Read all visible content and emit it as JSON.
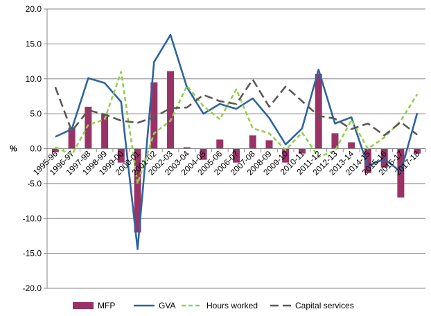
{
  "chart_data": {
    "type": "bar+line",
    "ylabel": "%",
    "ylim": [
      -20,
      20
    ],
    "yticks": [
      "-20.0",
      "-15.0",
      "-10.0",
      "-5.0",
      "0.0",
      "5.0",
      "10.0",
      "15.0",
      "20.0"
    ],
    "grid": true,
    "legend_position": "bottom",
    "categories": [
      "1995-96",
      "1996-97",
      "1997-98",
      "1998-99",
      "1999-00",
      "2000-01",
      "2001-02",
      "2002-03",
      "2003-04",
      "2004-05",
      "2005-06",
      "2006-07",
      "2007-08",
      "2008-09",
      "2009-10",
      "2010-11",
      "2011-12",
      "2012-13",
      "2013-14",
      "2014-15",
      "2015-16",
      "2016-17",
      "2017-18"
    ],
    "series": [
      {
        "name": "MFP",
        "type": "bar",
        "color": "#993366",
        "values": [
          -0.5,
          3.0,
          6.0,
          4.9,
          -2.0,
          -12.0,
          9.5,
          11.1,
          0.2,
          -1.6,
          1.3,
          -2.0,
          1.9,
          1.2,
          -2.0,
          -0.7,
          10.7,
          2.2,
          0.9,
          -3.5,
          -2.7,
          -7.0,
          -0.7
        ]
      },
      {
        "name": "GVA",
        "type": "line",
        "color": "#2E64A0",
        "dash": "solid",
        "values": [
          1.7,
          2.8,
          10.1,
          9.4,
          6.7,
          -14.4,
          12.4,
          16.3,
          8.8,
          5.0,
          6.4,
          5.7,
          7.2,
          4.4,
          0.6,
          2.9,
          11.3,
          3.6,
          4.5,
          -2.5,
          -1.5,
          -3.3,
          5.1
        ]
      },
      {
        "name": "Hours worked",
        "type": "line",
        "color": "#92D050",
        "dash": "short",
        "values": [
          0.2,
          -0.9,
          3.4,
          4.2,
          11.0,
          -5.0,
          2.2,
          4.0,
          9.0,
          6.1,
          4.2,
          8.5,
          2.9,
          2.2,
          -0.2,
          2.3,
          -1.2,
          -0.3,
          4.1,
          0.0,
          1.6,
          4.0,
          7.8
        ]
      },
      {
        "name": "Capital services",
        "type": "line",
        "color": "#595959",
        "dash": "long",
        "values": [
          8.8,
          2.5,
          5.5,
          4.9,
          4.0,
          3.7,
          4.5,
          5.8,
          5.9,
          7.7,
          6.8,
          6.4,
          9.9,
          6.0,
          8.9,
          6.8,
          4.7,
          4.3,
          2.8,
          3.6,
          1.9,
          3.8,
          2.0
        ]
      }
    ]
  }
}
